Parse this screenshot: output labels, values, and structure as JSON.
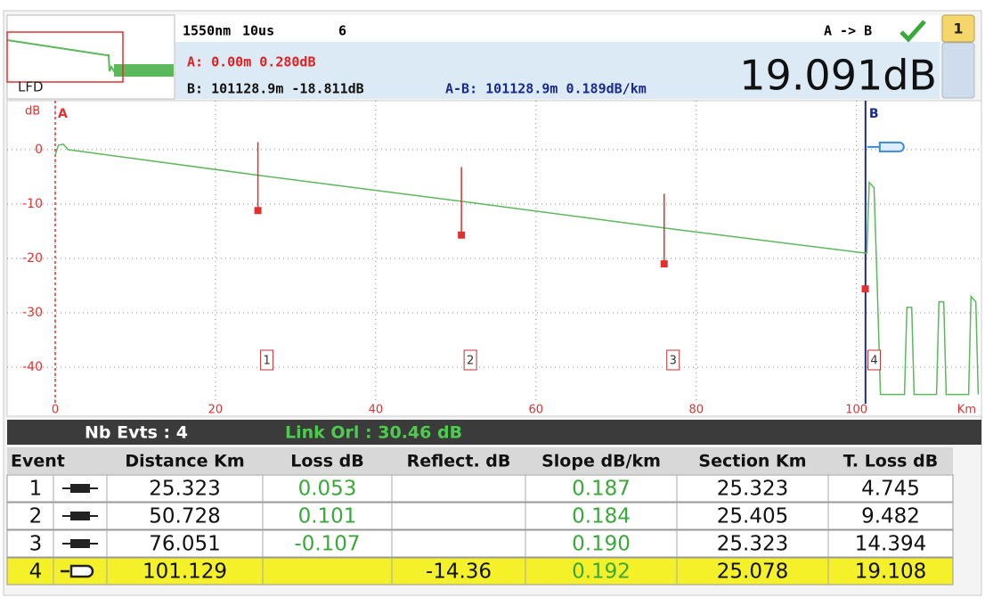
{
  "header": {
    "wavelength": "1550nm",
    "pulse": "10us",
    "averages": "6",
    "direction": "A -> B",
    "page": "1",
    "thumbnail_label": "LFD",
    "marker_a": "A: 0.00m  0.280dB",
    "marker_b": "B: 101128.9m -18.811dB",
    "a_to_b": "A-B: 101128.9m 0.189dB/km",
    "total_loss": "19.091dB"
  },
  "chart_data": {
    "type": "line",
    "y_unit": "dB",
    "x_unit": "Km",
    "xlim": [
      -6,
      115.6
    ],
    "ylim": [
      -49,
      9
    ],
    "xticks": [
      0,
      20,
      40,
      60,
      80,
      100
    ],
    "yticks": [
      0,
      -10,
      -20,
      -30,
      -40
    ],
    "grid": true,
    "cursor_a": {
      "label": "A",
      "x": 0
    },
    "cursor_b": {
      "label": "B",
      "x": 101.13
    },
    "series": [
      {
        "color": "#5cb85c",
        "x": [
          0,
          0.4,
          1,
          1.6,
          25.3,
          50.7,
          76,
          101,
          101.3,
          101.6,
          102.2,
          102.6,
          103,
          106,
          106.3,
          106.9,
          107.2,
          110,
          110.3,
          110.9,
          111.2,
          114,
          114.3,
          114.9,
          115.2
        ],
        "values": [
          -1,
          0.8,
          1,
          0,
          -4.7,
          -9.5,
          -14.4,
          -19,
          -19,
          -6,
          -7,
          -25,
          -45,
          -45,
          -29,
          -29,
          -45,
          -45,
          -28,
          -28,
          -45,
          -45,
          -27,
          -28,
          -45
        ]
      }
    ],
    "events": [
      {
        "label": "1",
        "x": 25.3,
        "top": 1.4,
        "bottom": -11.2
      },
      {
        "label": "2",
        "x": 50.7,
        "top": -3.2,
        "bottom": -15.7
      },
      {
        "label": "3",
        "x": 76.0,
        "top": -8.1,
        "bottom": -21
      },
      {
        "label": "4",
        "x": 101.1,
        "top": -25.6,
        "bottom": -25.6
      }
    ]
  },
  "summary": {
    "events": "Nb Evts : 4",
    "link_orl": "Link Orl :  30.46 dB"
  },
  "table": {
    "columns": [
      "Event",
      "Distance  Km",
      "Loss dB",
      "Reflect. dB",
      "Slope  dB/km",
      "Section Km",
      "T. Loss dB"
    ],
    "rows": [
      [
        "1",
        "25.323",
        "0.053",
        null,
        "0.187",
        "25.323",
        "4.745"
      ],
      [
        "2",
        "50.728",
        "0.101",
        null,
        "0.184",
        "25.405",
        "9.482"
      ],
      [
        "3",
        "76.051",
        "-0.107",
        null,
        "0.190",
        "25.323",
        "14.394"
      ],
      [
        "4",
        "101.129",
        null,
        "-14.36",
        "0.192",
        "25.078",
        "19.108"
      ]
    ]
  }
}
